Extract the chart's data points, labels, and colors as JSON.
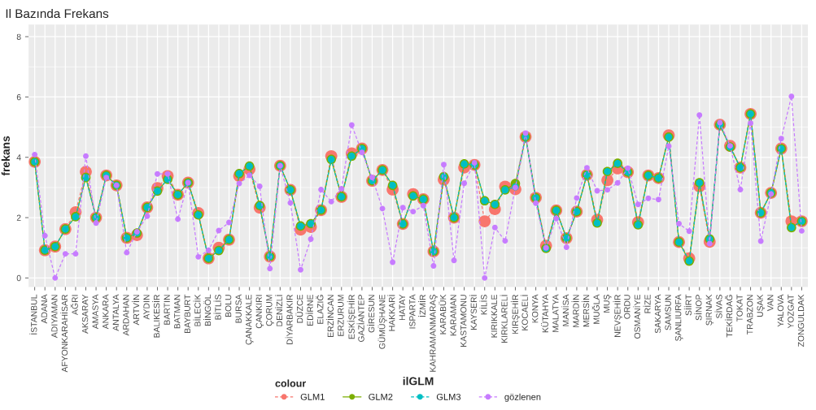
{
  "chart_data": {
    "type": "line",
    "title": "Il Bazında Frekans",
    "xlabel": "ilGLM",
    "ylabel": "frekans",
    "legend_title": "colour",
    "legend": "bottom",
    "grid": true,
    "marker": "circle",
    "categories": [
      "İSTANBUL",
      "ADANA",
      "ADIYAMAN",
      "AFYONKARAHİSAR",
      "AĞRI",
      "AKSARAY",
      "AMASYA",
      "ANKARA",
      "ANTALYA",
      "ARDAHAN",
      "ARTVİN",
      "AYDIN",
      "BALIKESİR",
      "BARTIN",
      "BATMAN",
      "BAYBURT",
      "BİLECİK",
      "BİNGÖL",
      "BİTLİS",
      "BOLU",
      "BURSA",
      "ÇANAKKALE",
      "ÇANKIRI",
      "ÇORUM",
      "DENİZLİ",
      "DİYARBAKIR",
      "DÜZCE",
      "EDİRNE",
      "ELAZIĞ",
      "ERZİNCAN",
      "ERZURUM",
      "ESKİŞEHİR",
      "GAZİANTEP",
      "GİRESUN",
      "GÜMÜŞHANE",
      "HAKKARİ",
      "HATAY",
      "ISPARTA",
      "İZMİR",
      "KAHRAMANMARAŞ",
      "KARABÜK",
      "KARAMAN",
      "KASTAMONU",
      "KAYSERİ",
      "KİLİS",
      "KIRIKKALE",
      "KIRKLARELİ",
      "KIRŞEHİR",
      "KOCAELİ",
      "KONYA",
      "KÜTAHYA",
      "MALATYA",
      "MANİSA",
      "MARDİN",
      "MERSİN",
      "MUĞLA",
      "MUŞ",
      "NEVŞEHİR",
      "ORDU",
      "OSMANİYE",
      "RİZE",
      "SAKARYA",
      "SAMSUN",
      "ŞANLIURFA",
      "SİİRT",
      "SİNOP",
      "ŞIRNAK",
      "SİVAS",
      "TEKİRDAĞ",
      "TOKAT",
      "TRABZON",
      "UŞAK",
      "VAN",
      "YALOVA",
      "YOZGAT",
      "ZONGULDAK"
    ],
    "ylim": [
      -0.3,
      8.4
    ],
    "yticks": [
      0,
      2,
      4,
      6,
      8
    ],
    "series": [
      {
        "name": "GLM1",
        "color": "#f8766d",
        "line_style": "dashed",
        "values": [
          3.85,
          0.92,
          1.04,
          1.62,
          2.18,
          3.52,
          2.0,
          3.4,
          3.07,
          1.33,
          1.42,
          2.34,
          2.98,
          3.38,
          2.76,
          3.16,
          2.15,
          0.65,
          1.0,
          1.27,
          3.38,
          3.6,
          2.33,
          0.71,
          3.72,
          2.92,
          1.6,
          1.69,
          2.25,
          4.04,
          2.69,
          4.13,
          4.29,
          3.22,
          3.58,
          2.93,
          1.79,
          2.78,
          2.61,
          0.88,
          3.26,
          2.0,
          3.66,
          3.75,
          1.88,
          2.28,
          3.03,
          2.94,
          4.68,
          2.66,
          1.07,
          2.24,
          1.32,
          2.2,
          3.42,
          1.93,
          3.24,
          3.63,
          3.51,
          1.85,
          3.4,
          3.31,
          4.73,
          1.19,
          0.65,
          3.04,
          1.2,
          5.08,
          4.38,
          3.66,
          5.44,
          2.16,
          2.82,
          4.29,
          1.88,
          1.88
        ]
      },
      {
        "name": "GLM2",
        "color": "#7cae00",
        "line_style": "solid",
        "values": [
          3.85,
          0.92,
          1.04,
          1.62,
          2.03,
          3.33,
          2.0,
          3.4,
          3.07,
          1.33,
          1.49,
          2.34,
          2.88,
          3.27,
          2.76,
          3.16,
          2.09,
          0.65,
          0.91,
          1.27,
          3.46,
          3.71,
          2.4,
          0.71,
          3.72,
          2.92,
          1.72,
          1.8,
          2.25,
          3.93,
          2.69,
          4.04,
          4.29,
          3.22,
          3.58,
          3.07,
          1.79,
          2.72,
          2.61,
          0.88,
          3.36,
          2.0,
          3.78,
          3.75,
          2.56,
          2.44,
          2.92,
          3.13,
          4.68,
          2.66,
          0.98,
          2.24,
          1.32,
          2.2,
          3.42,
          1.82,
          3.53,
          3.8,
          3.51,
          1.76,
          3.4,
          3.31,
          4.67,
          1.19,
          0.56,
          3.16,
          1.29,
          5.08,
          4.34,
          3.66,
          5.44,
          2.16,
          2.82,
          4.29,
          1.67,
          1.88
        ]
      },
      {
        "name": "GLM3",
        "color": "#00bfc4",
        "line_style": "dashed",
        "values": [
          3.85,
          0.92,
          1.04,
          1.62,
          2.03,
          3.33,
          2.0,
          3.4,
          3.07,
          1.33,
          1.49,
          2.34,
          2.88,
          3.27,
          2.76,
          3.16,
          2.09,
          0.65,
          0.91,
          1.27,
          3.46,
          3.71,
          2.4,
          0.71,
          3.72,
          2.92,
          1.72,
          1.8,
          2.25,
          3.93,
          2.69,
          4.04,
          4.29,
          3.22,
          3.58,
          3.07,
          1.79,
          2.72,
          2.61,
          0.88,
          3.36,
          2.0,
          3.78,
          3.75,
          2.56,
          2.44,
          2.92,
          3.02,
          4.68,
          2.66,
          0.98,
          2.24,
          1.32,
          2.2,
          3.42,
          1.82,
          3.53,
          3.8,
          3.51,
          1.76,
          3.4,
          3.31,
          4.67,
          1.19,
          0.56,
          3.16,
          1.29,
          5.08,
          4.34,
          3.66,
          5.44,
          2.16,
          2.82,
          4.29,
          1.67,
          1.88
        ]
      },
      {
        "name": "gözlenen",
        "color": "#c77cff",
        "line_style": "dashed",
        "values": [
          4.09,
          1.4,
          0,
          0.8,
          0.8,
          4.04,
          1.82,
          3.33,
          3.07,
          0.84,
          1.53,
          2.05,
          3.45,
          3.45,
          1.95,
          3.16,
          0.7,
          0.92,
          1.57,
          1.84,
          3.13,
          3.4,
          3.04,
          0.31,
          3.72,
          2.49,
          0.27,
          1.29,
          2.93,
          2.53,
          2.96,
          5.07,
          4.16,
          3.33,
          2.3,
          0.52,
          2.33,
          2.2,
          2.4,
          0.4,
          3.76,
          0.58,
          3.14,
          3.82,
          0,
          1.67,
          1.23,
          3.0,
          4.8,
          2.48,
          1.0,
          1.97,
          1.02,
          2.65,
          3.65,
          2.89,
          2.92,
          3.15,
          3.64,
          2.44,
          2.64,
          2.6,
          4.37,
          1.8,
          1.55,
          5.4,
          1.14,
          5.15,
          4.38,
          2.93,
          5.13,
          1.22,
          2.78,
          4.62,
          6.02,
          1.56
        ]
      }
    ]
  }
}
